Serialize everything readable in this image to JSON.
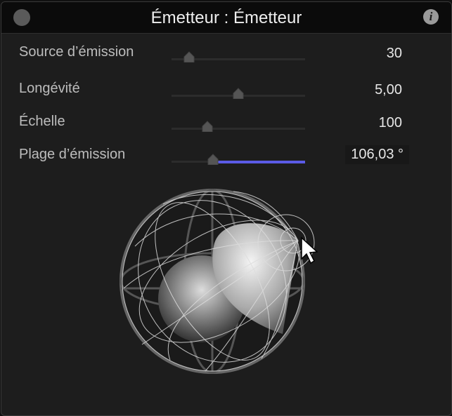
{
  "window": {
    "title": "Émetteur : Émetteur",
    "info_icon": "info-icon",
    "close_icon": "close-button"
  },
  "params": [
    {
      "label": "Source d’émission",
      "value": "30",
      "slider_fraction": 0.13
    },
    {
      "label": "Longévité",
      "value": "5,00",
      "slider_fraction": 0.5
    },
    {
      "label": "Échelle",
      "value": "100",
      "slider_fraction": 0.27
    },
    {
      "label": "Plage d’émission",
      "value": "106,03 °",
      "slider_fraction": 0.31,
      "highlight_color": "#5b5be6"
    }
  ]
}
